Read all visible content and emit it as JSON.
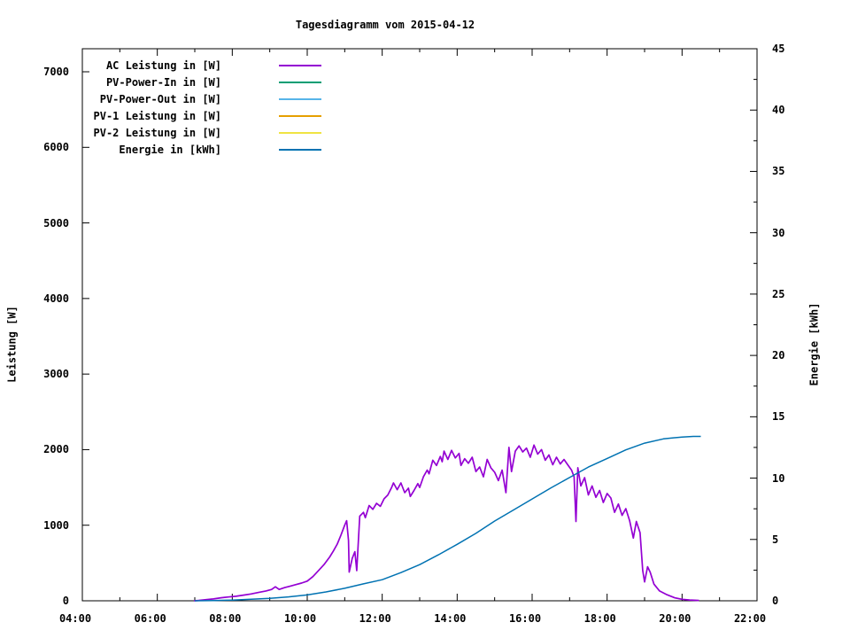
{
  "window": {
    "title": "Tagesdiagramm vom 2015-04-12"
  },
  "chart_data": {
    "type": "line",
    "title": "Tagesdiagramm vom 2015-04-12",
    "xlabel": "",
    "x_axis": {
      "unit": "time-of-day",
      "range_hours": [
        4,
        22
      ],
      "major_tick_labels": [
        "04:00",
        "06:00",
        "08:00",
        "10:00",
        "12:00",
        "14:00",
        "16:00",
        "18:00",
        "20:00",
        "22:00"
      ],
      "major_tick_hours": [
        4,
        6,
        8,
        10,
        12,
        14,
        16,
        18,
        20,
        22
      ],
      "minor_tick_every_hours": 1
    },
    "y_axis_left": {
      "label": "Leistung [W]",
      "range": [
        0,
        7305
      ],
      "tick_values": [
        0,
        1000,
        2000,
        3000,
        4000,
        5000,
        6000,
        7000
      ]
    },
    "y_axis_right": {
      "label": "Energie [kWh]",
      "range": [
        0,
        45
      ],
      "tick_values": [
        0,
        5,
        10,
        15,
        20,
        25,
        30,
        35,
        40,
        45
      ],
      "minor_tick_every": 2.5
    },
    "grid": false,
    "legend": {
      "position": "top-left-inside",
      "items": [
        {
          "label": "AC Leistung in [W]",
          "color": "#9400d3",
          "plotted": true
        },
        {
          "label": "PV-Power-In in [W]",
          "color": "#009e73",
          "plotted": false
        },
        {
          "label": "PV-Power-Out in [W]",
          "color": "#56b4e9",
          "plotted": false
        },
        {
          "label": "PV-1 Leistung in [W]",
          "color": "#e69f00",
          "plotted": false
        },
        {
          "label": "PV-2 Leistung in [W]",
          "color": "#f0e442",
          "plotted": false
        },
        {
          "label": "Energie in [kWh]",
          "color": "#0072b2",
          "plotted": true
        }
      ]
    },
    "series": [
      {
        "name": "AC Leistung in [W]",
        "axis": "left",
        "color": "#9400d3",
        "line_width": 1.7,
        "points_hours_watts": [
          [
            6.98,
            0
          ],
          [
            7.1,
            5
          ],
          [
            7.3,
            15
          ],
          [
            7.5,
            25
          ],
          [
            7.7,
            40
          ],
          [
            7.9,
            50
          ],
          [
            8.1,
            60
          ],
          [
            8.3,
            75
          ],
          [
            8.5,
            90
          ],
          [
            8.7,
            110
          ],
          [
            8.9,
            130
          ],
          [
            9.05,
            150
          ],
          [
            9.15,
            185
          ],
          [
            9.25,
            150
          ],
          [
            9.4,
            175
          ],
          [
            9.55,
            195
          ],
          [
            9.7,
            215
          ],
          [
            9.85,
            235
          ],
          [
            10.0,
            260
          ],
          [
            10.15,
            320
          ],
          [
            10.3,
            400
          ],
          [
            10.45,
            480
          ],
          [
            10.6,
            580
          ],
          [
            10.7,
            660
          ],
          [
            10.8,
            750
          ],
          [
            10.9,
            870
          ],
          [
            11.0,
            1000
          ],
          [
            11.05,
            1060
          ],
          [
            11.1,
            800
          ],
          [
            11.12,
            380
          ],
          [
            11.2,
            560
          ],
          [
            11.27,
            650
          ],
          [
            11.32,
            400
          ],
          [
            11.4,
            1120
          ],
          [
            11.5,
            1170
          ],
          [
            11.55,
            1100
          ],
          [
            11.65,
            1260
          ],
          [
            11.75,
            1210
          ],
          [
            11.85,
            1290
          ],
          [
            11.95,
            1250
          ],
          [
            12.05,
            1350
          ],
          [
            12.15,
            1400
          ],
          [
            12.25,
            1500
          ],
          [
            12.3,
            1560
          ],
          [
            12.4,
            1470
          ],
          [
            12.5,
            1560
          ],
          [
            12.6,
            1430
          ],
          [
            12.7,
            1490
          ],
          [
            12.75,
            1380
          ],
          [
            12.85,
            1460
          ],
          [
            12.95,
            1550
          ],
          [
            13.0,
            1500
          ],
          [
            13.1,
            1640
          ],
          [
            13.2,
            1730
          ],
          [
            13.25,
            1680
          ],
          [
            13.35,
            1860
          ],
          [
            13.45,
            1790
          ],
          [
            13.55,
            1910
          ],
          [
            13.6,
            1840
          ],
          [
            13.65,
            1980
          ],
          [
            13.75,
            1870
          ],
          [
            13.85,
            1990
          ],
          [
            13.95,
            1890
          ],
          [
            14.05,
            1950
          ],
          [
            14.1,
            1790
          ],
          [
            14.2,
            1880
          ],
          [
            14.3,
            1820
          ],
          [
            14.4,
            1900
          ],
          [
            14.5,
            1710
          ],
          [
            14.6,
            1770
          ],
          [
            14.7,
            1640
          ],
          [
            14.8,
            1870
          ],
          [
            14.9,
            1760
          ],
          [
            15.0,
            1700
          ],
          [
            15.1,
            1590
          ],
          [
            15.2,
            1730
          ],
          [
            15.3,
            1430
          ],
          [
            15.38,
            2030
          ],
          [
            15.45,
            1710
          ],
          [
            15.55,
            1980
          ],
          [
            15.65,
            2050
          ],
          [
            15.75,
            1970
          ],
          [
            15.85,
            2020
          ],
          [
            15.95,
            1900
          ],
          [
            16.05,
            2060
          ],
          [
            16.15,
            1940
          ],
          [
            16.25,
            2000
          ],
          [
            16.35,
            1860
          ],
          [
            16.45,
            1930
          ],
          [
            16.55,
            1800
          ],
          [
            16.65,
            1900
          ],
          [
            16.75,
            1810
          ],
          [
            16.85,
            1870
          ],
          [
            16.95,
            1800
          ],
          [
            17.05,
            1730
          ],
          [
            17.12,
            1640
          ],
          [
            17.17,
            1050
          ],
          [
            17.22,
            1760
          ],
          [
            17.3,
            1520
          ],
          [
            17.4,
            1630
          ],
          [
            17.5,
            1400
          ],
          [
            17.6,
            1520
          ],
          [
            17.7,
            1370
          ],
          [
            17.8,
            1460
          ],
          [
            17.9,
            1300
          ],
          [
            18.0,
            1420
          ],
          [
            18.1,
            1360
          ],
          [
            18.2,
            1170
          ],
          [
            18.3,
            1280
          ],
          [
            18.4,
            1130
          ],
          [
            18.5,
            1220
          ],
          [
            18.6,
            1060
          ],
          [
            18.7,
            830
          ],
          [
            18.78,
            1050
          ],
          [
            18.88,
            900
          ],
          [
            18.95,
            400
          ],
          [
            19.0,
            250
          ],
          [
            19.08,
            450
          ],
          [
            19.15,
            380
          ],
          [
            19.25,
            220
          ],
          [
            19.4,
            130
          ],
          [
            19.6,
            80
          ],
          [
            19.8,
            40
          ],
          [
            20.0,
            20
          ],
          [
            20.2,
            10
          ],
          [
            20.45,
            5
          ]
        ]
      },
      {
        "name": "Energie in [kWh]",
        "axis": "right",
        "color": "#0072b2",
        "line_width": 1.5,
        "points_hours_kwh": [
          [
            7.0,
            0
          ],
          [
            7.5,
            0.02
          ],
          [
            8.0,
            0.06
          ],
          [
            8.5,
            0.12
          ],
          [
            9.0,
            0.2
          ],
          [
            9.5,
            0.32
          ],
          [
            10.0,
            0.48
          ],
          [
            10.5,
            0.72
          ],
          [
            11.0,
            1.02
          ],
          [
            11.5,
            1.38
          ],
          [
            12.0,
            1.72
          ],
          [
            12.5,
            2.3
          ],
          [
            13.0,
            2.95
          ],
          [
            13.5,
            3.75
          ],
          [
            14.0,
            4.6
          ],
          [
            14.5,
            5.5
          ],
          [
            15.0,
            6.5
          ],
          [
            15.5,
            7.4
          ],
          [
            16.0,
            8.3
          ],
          [
            16.5,
            9.2
          ],
          [
            17.0,
            10.05
          ],
          [
            17.5,
            10.9
          ],
          [
            18.0,
            11.6
          ],
          [
            18.5,
            12.3
          ],
          [
            19.0,
            12.85
          ],
          [
            19.5,
            13.2
          ],
          [
            20.0,
            13.35
          ],
          [
            20.3,
            13.4
          ],
          [
            20.5,
            13.4
          ]
        ]
      }
    ]
  }
}
